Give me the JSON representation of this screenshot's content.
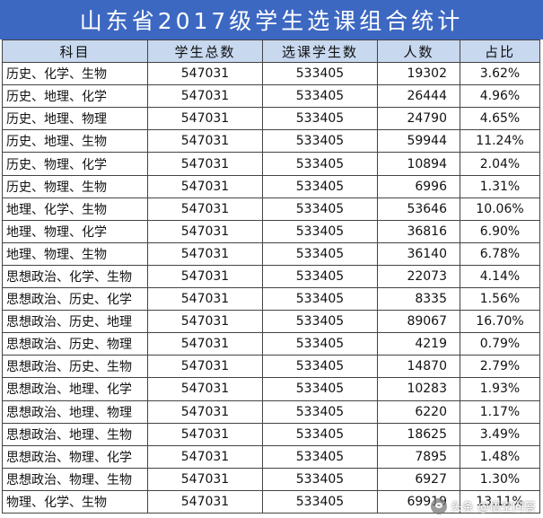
{
  "title": "山东省2017级学生选课组合统计",
  "headers": [
    "科目",
    "学生总数",
    "选课学生数",
    "人数",
    "占比"
  ],
  "rows": [
    {
      "subject": "历史、化学、生物",
      "total": "547031",
      "selected": "533405",
      "count": "19302",
      "ratio": "3.62%"
    },
    {
      "subject": "历史、地理、化学",
      "total": "547031",
      "selected": "533405",
      "count": "26444",
      "ratio": "4.96%"
    },
    {
      "subject": "历史、地理、物理",
      "total": "547031",
      "selected": "533405",
      "count": "24790",
      "ratio": "4.65%"
    },
    {
      "subject": "历史、地理、生物",
      "total": "547031",
      "selected": "533405",
      "count": "59944",
      "ratio": "11.24%"
    },
    {
      "subject": "历史、物理、化学",
      "total": "547031",
      "selected": "533405",
      "count": "10894",
      "ratio": "2.04%"
    },
    {
      "subject": "历史、物理、生物",
      "total": "547031",
      "selected": "533405",
      "count": "6996",
      "ratio": "1.31%"
    },
    {
      "subject": "地理、化学、生物",
      "total": "547031",
      "selected": "533405",
      "count": "53646",
      "ratio": "10.06%"
    },
    {
      "subject": "地理、物理、化学",
      "total": "547031",
      "selected": "533405",
      "count": "36816",
      "ratio": "6.90%"
    },
    {
      "subject": "地理、物理、生物",
      "total": "547031",
      "selected": "533405",
      "count": "36140",
      "ratio": "6.78%"
    },
    {
      "subject": "思想政治、化学、生物",
      "total": "547031",
      "selected": "533405",
      "count": "22073",
      "ratio": "4.14%"
    },
    {
      "subject": "思想政治、历史、化学",
      "total": "547031",
      "selected": "533405",
      "count": "8335",
      "ratio": "1.56%"
    },
    {
      "subject": "思想政治、历史、地理",
      "total": "547031",
      "selected": "533405",
      "count": "89067",
      "ratio": "16.70%"
    },
    {
      "subject": "思想政治、历史、物理",
      "total": "547031",
      "selected": "533405",
      "count": "4219",
      "ratio": "0.79%"
    },
    {
      "subject": "思想政治、历史、生物",
      "total": "547031",
      "selected": "533405",
      "count": "14870",
      "ratio": "2.79%"
    },
    {
      "subject": "思想政治、地理、化学",
      "total": "547031",
      "selected": "533405",
      "count": "10283",
      "ratio": "1.93%"
    },
    {
      "subject": "思想政治、地理、物理",
      "total": "547031",
      "selected": "533405",
      "count": "6220",
      "ratio": "1.17%"
    },
    {
      "subject": "思想政治、地理、生物",
      "total": "547031",
      "selected": "533405",
      "count": "18625",
      "ratio": "3.49%"
    },
    {
      "subject": "思想政治、物理、化学",
      "total": "547031",
      "selected": "533405",
      "count": "7895",
      "ratio": "1.48%"
    },
    {
      "subject": "思想政治、物理、生物",
      "total": "547031",
      "selected": "533405",
      "count": "6927",
      "ratio": "1.30%"
    },
    {
      "subject": "物理、化学、生物",
      "total": "547031",
      "selected": "533405",
      "count": "69919",
      "ratio": "13.11%"
    }
  ],
  "watermark": {
    "text": "头条 @悟空问答",
    "icon": "wukong-logo-icon"
  },
  "colors": {
    "title_bg": "#3d68c2",
    "header_bg": "#c7d8ef",
    "border": "#444444"
  }
}
